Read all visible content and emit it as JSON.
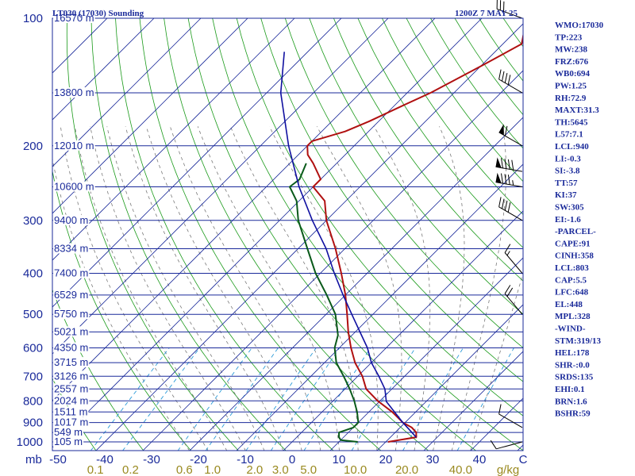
{
  "header": {
    "station": "LT030 (17030) Sounding",
    "time": "1200Z  7 MAY 25"
  },
  "indices": [
    "WMO:17030",
    "TP:223",
    "MW:238",
    "FRZ:676",
    "WB0:694",
    "PW:1.25",
    "RH:72.9",
    "MAXT:31.3",
    "TH:5645",
    "L57:7.1",
    "LCL:940",
    "LI:-0.3",
    "SI:-3.8",
    "TT:57",
    "KI:37",
    "SW:305",
    "EI:-1.6",
    "-PARCEL-",
    "CAPE:91",
    "CINH:358",
    "LCL:803",
    "CAP:5.5",
    "LFC:648",
    "EL:448",
    "MPL:328",
    "-WIND-",
    "STM:319/13",
    "HEL:178",
    "SHR-:0.0",
    "SRDS:135",
    "EHI:0.1",
    "BRN:1.6",
    "BSHR:59"
  ],
  "colors": {
    "axis": "#1a2a9a",
    "isobar": "#1a2a9a",
    "isotherm": "#1a2a9a",
    "dry_adiabat": "#1a9a1a",
    "moist_adiabat": "#7a7a7a",
    "mixing_ratio": "#2a9ad8",
    "temperature": "#b01010",
    "dewpoint": "#0a5a1a",
    "parcel": "#1010a0",
    "wind_barb": "#000000"
  },
  "chart_data": {
    "type": "skew-t",
    "x_unit": "°C",
    "y_unit": "mb",
    "xlim": [
      -50,
      50
    ],
    "ylim": [
      1000,
      100
    ],
    "pressure_ticks": [
      {
        "label": "100",
        "p": 100
      },
      {
        "label": "200",
        "p": 200
      },
      {
        "label": "300",
        "p": 300
      },
      {
        "label": "400",
        "p": 400
      },
      {
        "label": "500",
        "p": 500
      },
      {
        "label": "600",
        "p": 600
      },
      {
        "label": "700",
        "p": 700
      },
      {
        "label": "800",
        "p": 800
      },
      {
        "label": "900",
        "p": 900
      },
      {
        "label": "1000",
        "p": 1000
      }
    ],
    "pressure_axis_label": "mb",
    "temperature_ticks": [
      {
        "label": "-50",
        "t": -50
      },
      {
        "label": "-40",
        "t": -40
      },
      {
        "label": "-30",
        "t": -30
      },
      {
        "label": "-20",
        "t": -20
      },
      {
        "label": "-10",
        "t": -10
      },
      {
        "label": "0",
        "t": 0
      },
      {
        "label": "10",
        "t": 10
      },
      {
        "label": "20",
        "t": 20
      },
      {
        "label": "30",
        "t": 30
      },
      {
        "label": "40",
        "t": 40
      }
    ],
    "temperature_axis_label": "C",
    "mixing_ratio_ticks": [
      {
        "label": "0.1",
        "t": -42
      },
      {
        "label": "0.2",
        "t": -34.5
      },
      {
        "label": "0.6",
        "t": -23
      },
      {
        "label": "1.0",
        "t": -17
      },
      {
        "label": "2.0",
        "t": -8
      },
      {
        "label": "3.0",
        "t": -2.5
      },
      {
        "label": "5.0",
        "t": 3.5
      },
      {
        "label": "10.0",
        "t": 13.5
      },
      {
        "label": "20.0",
        "t": 24.5
      },
      {
        "label": "40.0",
        "t": 36
      }
    ],
    "mixing_ratio_unit": "g/kg",
    "height_labels": [
      {
        "label": "16570 m",
        "p": 100
      },
      {
        "label": "13800 m",
        "p": 150
      },
      {
        "label": "12010 m",
        "p": 200
      },
      {
        "label": "10600 m",
        "p": 250
      },
      {
        "label": "9400 m",
        "p": 300
      },
      {
        "label": "8334 m",
        "p": 350
      },
      {
        "label": "7400 m",
        "p": 400
      },
      {
        "label": "6529 m",
        "p": 450
      },
      {
        "label": "5750 m",
        "p": 500
      },
      {
        "label": "5021 m",
        "p": 550
      },
      {
        "label": "4350 m",
        "p": 600
      },
      {
        "label": "3715 m",
        "p": 650
      },
      {
        "label": "3126 m",
        "p": 700
      },
      {
        "label": "2557 m",
        "p": 750
      },
      {
        "label": "2024 m",
        "p": 800
      },
      {
        "label": "1511 m",
        "p": 850
      },
      {
        "label": "1017 m",
        "p": 900
      },
      {
        "label": "549 m",
        "p": 950
      },
      {
        "label": "105 m",
        "p": 1000
      }
    ],
    "series": [
      {
        "key": "temperature",
        "points": [
          {
            "p": 1000,
            "t": 20.5
          },
          {
            "p": 975,
            "t": 25.5
          },
          {
            "p": 950,
            "t": 24.5
          },
          {
            "p": 925,
            "t": 22.5
          },
          {
            "p": 900,
            "t": 19.5
          },
          {
            "p": 850,
            "t": 15
          },
          {
            "p": 800,
            "t": 9.5
          },
          {
            "p": 750,
            "t": 4.5
          },
          {
            "p": 700,
            "t": 1
          },
          {
            "p": 650,
            "t": -3.5
          },
          {
            "p": 600,
            "t": -7.5
          },
          {
            "p": 550,
            "t": -11.5
          },
          {
            "p": 500,
            "t": -15.5
          },
          {
            "p": 450,
            "t": -20
          },
          {
            "p": 400,
            "t": -25.5
          },
          {
            "p": 350,
            "t": -32
          },
          {
            "p": 300,
            "t": -40
          },
          {
            "p": 270,
            "t": -44.5
          },
          {
            "p": 250,
            "t": -50
          },
          {
            "p": 240,
            "t": -50
          },
          {
            "p": 220,
            "t": -55
          },
          {
            "p": 210,
            "t": -58
          },
          {
            "p": 200,
            "t": -60
          },
          {
            "p": 195,
            "t": -60
          },
          {
            "p": 185,
            "t": -55
          },
          {
            "p": 175,
            "t": -52
          },
          {
            "p": 160,
            "t": -48
          },
          {
            "p": 150,
            "t": -45
          },
          {
            "p": 130,
            "t": -40
          },
          {
            "p": 115,
            "t": -36
          },
          {
            "p": 108,
            "t": -38
          },
          {
            "p": 100,
            "t": -41
          }
        ]
      },
      {
        "key": "dewpoint",
        "points": [
          {
            "p": 1000,
            "t": 14
          },
          {
            "p": 990,
            "t": 10
          },
          {
            "p": 975,
            "t": 9
          },
          {
            "p": 950,
            "t": 8
          },
          {
            "p": 925,
            "t": 10
          },
          {
            "p": 900,
            "t": 10
          },
          {
            "p": 850,
            "t": 7.5
          },
          {
            "p": 800,
            "t": 4.5
          },
          {
            "p": 750,
            "t": 1
          },
          {
            "p": 700,
            "t": -3
          },
          {
            "p": 650,
            "t": -7.5
          },
          {
            "p": 600,
            "t": -11
          },
          {
            "p": 560,
            "t": -13
          },
          {
            "p": 500,
            "t": -18
          },
          {
            "p": 450,
            "t": -24
          },
          {
            "p": 400,
            "t": -31
          },
          {
            "p": 350,
            "t": -38
          },
          {
            "p": 300,
            "t": -46
          },
          {
            "p": 270,
            "t": -50.5
          },
          {
            "p": 250,
            "t": -55
          },
          {
            "p": 240,
            "t": -54.5
          },
          {
            "p": 220,
            "t": -56.5
          }
        ]
      },
      {
        "key": "parcel",
        "points": [
          {
            "p": 975,
            "t": 25.5
          },
          {
            "p": 900,
            "t": 19.5
          },
          {
            "p": 803,
            "t": 11.5
          },
          {
            "p": 750,
            "t": 8.5
          },
          {
            "p": 700,
            "t": 4.5
          },
          {
            "p": 650,
            "t": 0
          },
          {
            "p": 600,
            "t": -4
          },
          {
            "p": 550,
            "t": -9
          },
          {
            "p": 500,
            "t": -14.5
          },
          {
            "p": 450,
            "t": -20.5
          },
          {
            "p": 400,
            "t": -27
          },
          {
            "p": 350,
            "t": -34
          },
          {
            "p": 300,
            "t": -43
          },
          {
            "p": 250,
            "t": -53
          },
          {
            "p": 200,
            "t": -64
          },
          {
            "p": 150,
            "t": -77
          },
          {
            "p": 120,
            "t": -85
          }
        ]
      }
    ],
    "wind_barbs": [
      {
        "p": 1000,
        "dir": 255,
        "spd": 10
      },
      {
        "p": 925,
        "dir": 300,
        "spd": 10
      },
      {
        "p": 500,
        "dir": 320,
        "spd": 20
      },
      {
        "p": 400,
        "dir": 320,
        "spd": 15
      },
      {
        "p": 300,
        "dir": 300,
        "spd": 40
      },
      {
        "p": 250,
        "dir": 280,
        "spd": 85
      },
      {
        "p": 230,
        "dir": 280,
        "spd": 90
      },
      {
        "p": 200,
        "dir": 300,
        "spd": 60
      },
      {
        "p": 150,
        "dir": 300,
        "spd": 40
      },
      {
        "p": 100,
        "dir": 290,
        "spd": 30
      }
    ],
    "grid": true
  }
}
